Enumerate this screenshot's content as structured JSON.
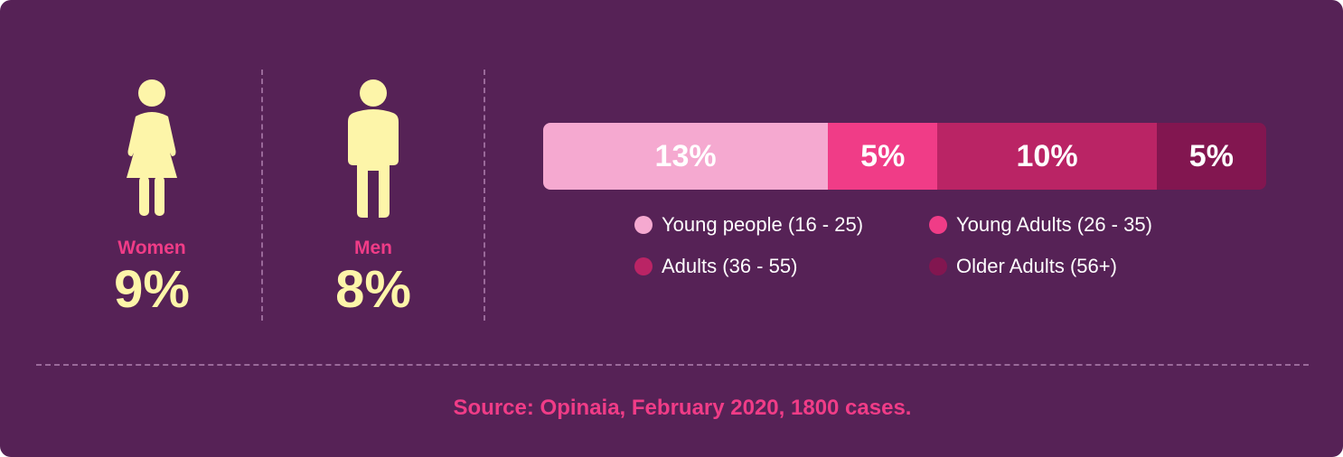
{
  "colors": {
    "background": "#562256",
    "accent": "#f03c87",
    "figure": "#fdf5a9"
  },
  "gender": [
    {
      "label": "Women",
      "value": "9%",
      "icon": "woman-icon"
    },
    {
      "label": "Men",
      "value": "8%",
      "icon": "man-icon"
    }
  ],
  "chart_data": {
    "type": "bar",
    "orientation": "horizontal-stacked",
    "unit": "%",
    "series": [
      {
        "name": "Young people (16 - 25)",
        "value": 13,
        "label": "13%",
        "color": "#f5a9d0"
      },
      {
        "name": "Young Adults (26 - 35)",
        "value": 5,
        "label": "5%",
        "color": "#f03c87"
      },
      {
        "name": "Adults (36 - 55)",
        "value": 10,
        "label": "10%",
        "color": "#ba2465"
      },
      {
        "name": "Older Adults (56+)",
        "value": 5,
        "label": "5%",
        "color": "#821650"
      }
    ],
    "legend_position": "bottom"
  },
  "source": "Source: Opinaia, February 2020, 1800 cases."
}
